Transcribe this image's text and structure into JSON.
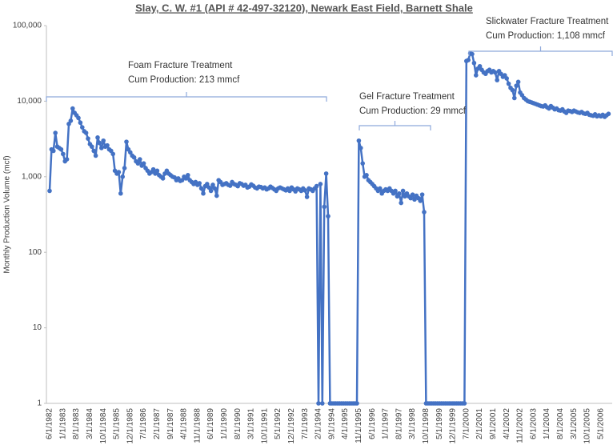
{
  "chart_data": {
    "type": "line",
    "title": "Slay, C. W. #1 (API # 42-497-32120), Newark East Field, Barnett Shale",
    "ylabel": "Monthly Production Volume (mcf)",
    "log_scale": true,
    "ylim": [
      1,
      100000
    ],
    "yticks": [
      1,
      10,
      100,
      {
        "value": 1000,
        "label": "1,000"
      },
      {
        "value": 10000,
        "label": "10,000"
      },
      {
        "value": 100000,
        "label": "100,000"
      }
    ],
    "annotations": [
      {
        "lines": [
          "Foam Fracture Treatment",
          "Cum Production: 213 mmcf"
        ]
      },
      {
        "lines": [
          "Gel Fracture Treatment",
          "Cum Production: 29 mmcf"
        ]
      },
      {
        "lines": [
          "Slickwater Fracture Treatment",
          "Cum Production: 1,108 mmcf"
        ]
      }
    ],
    "categories": [
      "6/1/1982",
      null,
      null,
      null,
      null,
      null,
      null,
      "1/1/1983",
      null,
      null,
      null,
      null,
      null,
      null,
      "8/1/1983",
      null,
      null,
      null,
      null,
      null,
      null,
      "3/1/1984",
      null,
      null,
      null,
      null,
      null,
      null,
      "10/1/1984",
      null,
      null,
      null,
      null,
      null,
      null,
      "5/1/1985",
      null,
      null,
      null,
      null,
      null,
      null,
      "12/1/1985",
      null,
      null,
      null,
      null,
      null,
      null,
      "7/1/1986",
      null,
      null,
      null,
      null,
      null,
      null,
      "2/1/1987",
      null,
      null,
      null,
      null,
      null,
      null,
      "9/1/1987",
      null,
      null,
      null,
      null,
      null,
      null,
      "4/1/1988",
      null,
      null,
      null,
      null,
      null,
      null,
      "11/1/1988",
      null,
      null,
      null,
      null,
      null,
      null,
      "6/1/1989",
      null,
      null,
      null,
      null,
      null,
      null,
      "1/1/1990",
      null,
      null,
      null,
      null,
      null,
      null,
      "8/1/1990",
      null,
      null,
      null,
      null,
      null,
      null,
      "3/1/1991",
      null,
      null,
      null,
      null,
      null,
      null,
      "10/1/1991",
      null,
      null,
      null,
      null,
      null,
      null,
      "5/1/1992",
      null,
      null,
      null,
      null,
      null,
      null,
      "12/1/1992",
      null,
      null,
      null,
      null,
      null,
      null,
      "7/1/1993",
      null,
      null,
      null,
      null,
      null,
      null,
      "2/1/1994",
      null,
      null,
      null,
      null,
      null,
      null,
      "9/1/1994",
      null,
      null,
      null,
      null,
      null,
      null,
      "4/1/1995",
      null,
      null,
      null,
      null,
      null,
      null,
      "11/1/1995",
      null,
      null,
      null,
      null,
      null,
      null,
      "6/1/1996",
      null,
      null,
      null,
      null,
      null,
      null,
      "1/1/1997",
      null,
      null,
      null,
      null,
      null,
      null,
      "8/1/1997",
      null,
      null,
      null,
      null,
      null,
      null,
      "3/1/1998",
      null,
      null,
      null,
      null,
      null,
      null,
      "10/1/1998",
      null,
      null,
      null,
      null,
      null,
      null,
      "5/1/1999",
      null,
      null,
      null,
      null,
      null,
      null,
      "12/1/1999",
      null,
      null,
      null,
      null,
      null,
      null,
      "7/1/2000",
      null,
      null,
      null,
      null,
      null,
      null,
      "2/1/2001",
      null,
      null,
      null,
      null,
      null,
      null,
      "9/1/2001",
      null,
      null,
      null,
      null,
      null,
      null,
      "4/1/2002",
      null,
      null,
      null,
      null,
      null,
      null,
      "11/1/2002",
      null,
      null,
      null,
      null,
      null,
      null,
      "6/1/2003",
      null,
      null,
      null,
      null,
      null,
      null,
      "1/1/2004",
      null,
      null,
      null,
      null,
      null,
      null,
      "8/1/2004",
      null,
      null,
      null,
      null,
      null,
      null,
      "3/1/2005",
      null,
      null,
      null,
      null,
      null,
      null,
      "10/1/2005",
      null,
      null,
      null,
      null,
      null,
      null,
      "5/1/2006",
      null,
      null,
      null,
      null
    ],
    "series": [
      {
        "color": "#4472c4",
        "values": [
          650,
          2300,
          2200,
          3800,
          2500,
          2400,
          2300,
          2000,
          1600,
          1700,
          5000,
          5500,
          8000,
          7000,
          6500,
          6000,
          5200,
          4500,
          4000,
          3800,
          3200,
          2700,
          2500,
          2200,
          1900,
          3300,
          2800,
          2400,
          3000,
          2500,
          2600,
          2300,
          2200,
          2000,
          1200,
          1100,
          1150,
          600,
          1000,
          1300,
          2900,
          2300,
          2100,
          1900,
          1800,
          1600,
          1500,
          1700,
          1400,
          1500,
          1300,
          1200,
          1100,
          1150,
          1250,
          1100,
          1200,
          1050,
          1000,
          950,
          1100,
          1200,
          1100,
          1050,
          1000,
          980,
          900,
          950,
          880,
          900,
          1000,
          950,
          1050,
          900,
          850,
          800,
          850,
          780,
          820,
          700,
          600,
          750,
          800,
          720,
          650,
          780,
          700,
          560,
          900,
          850,
          780,
          800,
          820,
          780,
          760,
          850,
          800,
          780,
          750,
          820,
          800,
          760,
          780,
          720,
          740,
          790,
          760,
          720,
          700,
          740,
          730,
          700,
          720,
          680,
          700,
          740,
          710,
          680,
          650,
          700,
          720,
          700,
          680,
          660,
          700,
          650,
          720,
          680,
          640,
          700,
          680,
          650,
          700,
          660,
          540,
          700,
          680,
          650,
          700,
          750,
          1,
          800,
          1,
          400,
          1100,
          300,
          1,
          1,
          1,
          1,
          1,
          1,
          1,
          1,
          1,
          1,
          1,
          1,
          1,
          1,
          1,
          3000,
          2400,
          1500,
          1000,
          1050,
          900,
          850,
          800,
          750,
          700,
          650,
          700,
          600,
          650,
          680,
          650,
          700,
          650,
          600,
          650,
          550,
          600,
          450,
          650,
          550,
          600,
          550,
          520,
          580,
          500,
          560,
          520,
          480,
          580,
          340,
          1,
          1,
          1,
          1,
          1,
          1,
          1,
          1,
          1,
          1,
          1,
          1,
          1,
          1,
          1,
          1,
          1,
          1,
          1,
          1,
          1,
          34000,
          35000,
          43000,
          42000,
          32000,
          22000,
          27000,
          29000,
          26000,
          24000,
          23000,
          25000,
          26000,
          24000,
          25000,
          24000,
          19000,
          25000,
          23000,
          21000,
          22000,
          20000,
          17000,
          15000,
          14000,
          11000,
          16000,
          18000,
          13000,
          12000,
          11000,
          10500,
          10000,
          9800,
          9600,
          9400,
          9200,
          9000,
          8800,
          8600,
          8500,
          8800,
          8300,
          8000,
          8600,
          8200,
          7800,
          8000,
          7600,
          7500,
          7800,
          7300,
          7000,
          7500,
          7400,
          7200,
          7500,
          7300,
          7100,
          7000,
          7200,
          6900,
          6800,
          7000,
          6600,
          6500,
          6400,
          6700,
          6300,
          6500,
          6300,
          6600,
          6200,
          6500,
          6800
        ]
      }
    ]
  }
}
